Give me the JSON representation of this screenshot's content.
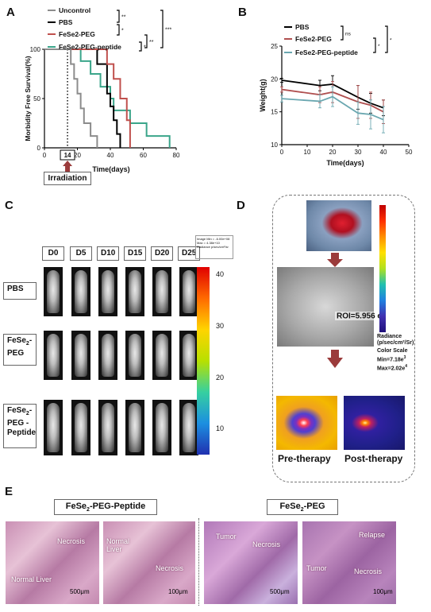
{
  "panels": {
    "A": "A",
    "B": "B",
    "C": "C",
    "D": "D",
    "E": "E"
  },
  "panelA": {
    "legend": [
      "Uncontrol",
      "PBS",
      "FeSe2-PEG",
      "FeSe2-PEG-peptide"
    ],
    "sig": [
      "**",
      "*",
      "**",
      "***",
      "*"
    ],
    "ylabel": "Morbidity Free Survival(%)",
    "xlabel": "Time(days)",
    "yticks": [
      "0",
      "50",
      "100"
    ],
    "xticks": [
      "0",
      "20",
      "40",
      "60",
      "80"
    ],
    "marker_label": "14",
    "irradiation": "Irradiation"
  },
  "panelB": {
    "legend": [
      "PBS",
      "FeSe2-PEG",
      "FeSe2-PEG-peptide"
    ],
    "sig": [
      "ns",
      "*",
      "*"
    ],
    "ylabel": "Weight(g)",
    "xlabel": "Time(days)",
    "yticks": [
      "10",
      "15",
      "20",
      "25"
    ],
    "xticks": [
      "0",
      "10",
      "20",
      "30",
      "40",
      "50"
    ]
  },
  "panelC": {
    "days": [
      "D0",
      "D5",
      "D10",
      "D15",
      "D20",
      "D25"
    ],
    "rows": [
      "PBS",
      "FeSe2-PEG",
      "FeSe2-PEG-Peptide"
    ],
    "row_main": [
      "PBS",
      "FeSe",
      "FeSe"
    ],
    "row_sub": [
      "",
      "2",
      "2"
    ],
    "row_rest": [
      "",
      "-PEG",
      "-PEG -Peptide"
    ],
    "scale_ticks": [
      "40",
      "30",
      "20",
      "10"
    ],
    "scale_caption": "Image Min = -6.00e+08 Max = 4.38e+10 Radiance p/sec/cm²/sr"
  },
  "panelD": {
    "roi": "ROI=5.956 e",
    "roi_sup": "4",
    "scale_title": "Radiance (p/sec/cm²/Sr)",
    "scale_lines": [
      "Color Scale",
      "Min=7.18e",
      "Max=2.02e"
    ],
    "scale_sup": [
      "3",
      "4"
    ],
    "pre": "Pre-therapy",
    "post": "Post-therapy"
  },
  "panelE": {
    "title_left_main": "FeSe",
    "title_left_sub": "2",
    "title_left_rest": "-PEG-Peptide",
    "title_right_main": "FeSe",
    "title_right_sub": "2",
    "title_right_rest": "-PEG",
    "labels": {
      "p1_necrosis": "Necrosis",
      "p1_normal": "Normal Liver",
      "p1_scale": "500μm",
      "p2_normal": "Normal Liver",
      "p2_necrosis": "Necrosis",
      "p2_scale": "100μm",
      "p3_tumor": "Tumor",
      "p3_necrosis": "Necrosis",
      "p3_scale": "500μm",
      "p4_relapse": "Relapse",
      "p4_tumor": "Tumor",
      "p4_necrosis": "Necrosis",
      "p4_scale": "100μm"
    }
  },
  "colors": {
    "uncontrol": "#8c8c8c",
    "pbs": "#000000",
    "fese2_peg": "#c0504d",
    "fese2_peg_peptide": "#3aa58a",
    "arrow": "#9b3b3b"
  },
  "chart_data": [
    {
      "type": "line",
      "title": "",
      "xlabel": "Time(days)",
      "ylabel": "Morbidity Free Survival(%)",
      "xlim": [
        0,
        80
      ],
      "ylim": [
        0,
        100
      ],
      "series": [
        {
          "name": "FeSe2-PEG-peptide",
          "x": [
            0,
            20,
            22,
            26,
            28,
            32,
            34,
            38,
            40,
            42,
            52,
            62,
            76
          ],
          "y": [
            100,
            100,
            88,
            88,
            75,
            75,
            62,
            62,
            50,
            38,
            25,
            12,
            0
          ]
        },
        {
          "name": "PBS",
          "x": [
            0,
            30,
            32,
            36,
            38,
            40,
            42,
            44,
            46
          ],
          "y": [
            100,
            100,
            85,
            85,
            55,
            42,
            28,
            14,
            0
          ]
        },
        {
          "name": "FeSe2-PEG",
          "x": [
            0,
            35,
            38,
            42,
            46,
            50,
            52
          ],
          "y": [
            100,
            100,
            85,
            70,
            50,
            28,
            0
          ]
        },
        {
          "name": "Uncontrol",
          "x": [
            0,
            14,
            16,
            18,
            20,
            22,
            24,
            28,
            32
          ],
          "y": [
            100,
            100,
            85,
            70,
            55,
            40,
            25,
            12,
            0
          ]
        }
      ]
    },
    {
      "type": "line",
      "title": "",
      "xlabel": "Time(days)",
      "ylabel": "Weight(g)",
      "xlim": [
        0,
        50
      ],
      "ylim": [
        10,
        25
      ],
      "series": [
        {
          "name": "PBS",
          "x": [
            0,
            15,
            20,
            30,
            35,
            40
          ],
          "y": [
            19.8,
            19.0,
            19.2,
            17.2,
            16.3,
            15.6
          ],
          "err": [
            0.3,
            0.8,
            1.3,
            1.8,
            1.5,
            1.2
          ]
        },
        {
          "name": "FeSe2-PEG",
          "x": [
            0,
            15,
            20,
            30,
            35,
            40
          ],
          "y": [
            18.4,
            17.6,
            18.0,
            16.5,
            16.0,
            15.0
          ],
          "err": [
            0.4,
            1.2,
            1.6,
            2.5,
            2.0,
            1.8
          ]
        },
        {
          "name": "FeSe2-PEG-peptide",
          "x": [
            0,
            15,
            20,
            30,
            35,
            40
          ],
          "y": [
            17.0,
            16.6,
            17.3,
            14.8,
            14.6,
            13.8
          ],
          "err": [
            0.5,
            1.0,
            1.5,
            1.7,
            2.2,
            2.0
          ]
        }
      ]
    }
  ]
}
